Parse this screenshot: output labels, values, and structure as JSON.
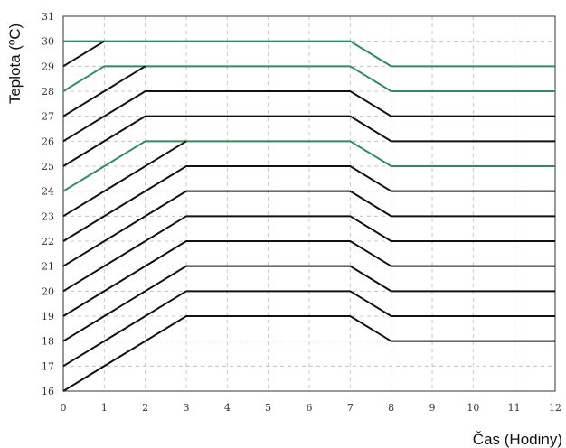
{
  "chart_data": {
    "type": "line",
    "xlabel": "Čas (Hodiny)",
    "ylabel": "Teplota (ºC)",
    "xlim": [
      0,
      12
    ],
    "ylim": [
      16,
      31
    ],
    "x_ticks": [
      "0",
      "1",
      "2",
      "3",
      "4",
      "5",
      "6",
      "7",
      "8",
      "9",
      "10",
      "11",
      "12"
    ],
    "y_ticks": [
      "16",
      "17",
      "18",
      "19",
      "20",
      "21",
      "22",
      "23",
      "24",
      "25",
      "26",
      "27",
      "28",
      "29",
      "30",
      "31"
    ],
    "grid": true,
    "colors": {
      "black": "#111111",
      "green": "#2e8b63"
    },
    "series": [
      {
        "color": "green",
        "points": [
          [
            0,
            30
          ],
          [
            7,
            30
          ],
          [
            8,
            29
          ],
          [
            12,
            29
          ]
        ]
      },
      {
        "color": "black",
        "points": [
          [
            0,
            29
          ],
          [
            1,
            30
          ]
        ]
      },
      {
        "color": "green",
        "points": [
          [
            0,
            28
          ],
          [
            1,
            29
          ],
          [
            7,
            29
          ],
          [
            8,
            28
          ],
          [
            12,
            28
          ]
        ]
      },
      {
        "color": "black",
        "points": [
          [
            0,
            27
          ],
          [
            2,
            29
          ]
        ]
      },
      {
        "color": "black",
        "points": [
          [
            0,
            26
          ],
          [
            2,
            28
          ],
          [
            7,
            28
          ],
          [
            8,
            27
          ],
          [
            12,
            27
          ]
        ]
      },
      {
        "color": "black",
        "points": [
          [
            0,
            25
          ],
          [
            2,
            27
          ],
          [
            7,
            27
          ],
          [
            8,
            26
          ],
          [
            12,
            26
          ]
        ]
      },
      {
        "color": "green",
        "points": [
          [
            0,
            24
          ],
          [
            2,
            26
          ],
          [
            7,
            26
          ],
          [
            8,
            25
          ],
          [
            12,
            25
          ]
        ]
      },
      {
        "color": "black",
        "points": [
          [
            0,
            23
          ],
          [
            3,
            26
          ]
        ]
      },
      {
        "color": "black",
        "points": [
          [
            0,
            22
          ],
          [
            3,
            25
          ],
          [
            7,
            25
          ],
          [
            8,
            24
          ],
          [
            12,
            24
          ]
        ]
      },
      {
        "color": "black",
        "points": [
          [
            0,
            21
          ],
          [
            3,
            24
          ],
          [
            7,
            24
          ],
          [
            8,
            23
          ],
          [
            12,
            23
          ]
        ]
      },
      {
        "color": "black",
        "points": [
          [
            0,
            20
          ],
          [
            3,
            23
          ],
          [
            7,
            23
          ],
          [
            8,
            22
          ],
          [
            12,
            22
          ]
        ]
      },
      {
        "color": "black",
        "points": [
          [
            0,
            19
          ],
          [
            3,
            22
          ],
          [
            7,
            22
          ],
          [
            8,
            21
          ],
          [
            12,
            21
          ]
        ]
      },
      {
        "color": "black",
        "points": [
          [
            0,
            18
          ],
          [
            3,
            21
          ],
          [
            7,
            21
          ],
          [
            8,
            20
          ],
          [
            12,
            20
          ]
        ]
      },
      {
        "color": "black",
        "points": [
          [
            0,
            17
          ],
          [
            3,
            20
          ],
          [
            7,
            20
          ],
          [
            8,
            19
          ],
          [
            12,
            19
          ]
        ]
      },
      {
        "color": "black",
        "points": [
          [
            0,
            16
          ],
          [
            3,
            19
          ],
          [
            7,
            19
          ],
          [
            8,
            18
          ],
          [
            12,
            18
          ]
        ]
      }
    ]
  }
}
